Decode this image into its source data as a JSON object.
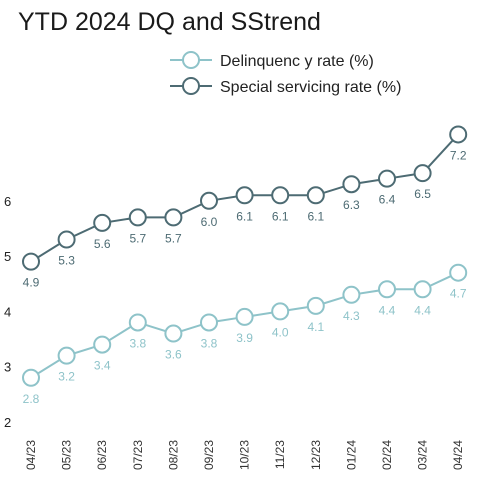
{
  "chart_data": {
    "type": "line",
    "title": "YTD 2024 DQ and SStrend",
    "categories": [
      "04/23",
      "05/23",
      "06/23",
      "07/23",
      "08/23",
      "09/23",
      "10/23",
      "11/23",
      "12/23",
      "01/24",
      "02/24",
      "03/24",
      "04/24"
    ],
    "ylim": [
      2,
      7.4
    ],
    "yticks": [
      "2",
      "3",
      "4",
      "5",
      "6"
    ],
    "ytick_values": [
      2,
      3,
      4,
      5,
      6
    ],
    "legend_position": "top-right",
    "grid": false,
    "series": [
      {
        "name": "Delinquenc y rate (%)",
        "color": "#8ec3c9",
        "values": [
          2.8,
          3.2,
          3.4,
          3.8,
          3.6,
          3.8,
          3.9,
          4.0,
          4.1,
          4.3,
          4.4,
          4.4,
          4.7
        ],
        "labels": [
          "2.8",
          "3.2",
          "3.4",
          "3.8",
          "3.6",
          "3.8",
          "3.9",
          "4.0",
          "4.1",
          "4.3",
          "4.4",
          "4.4",
          "4.7"
        ]
      },
      {
        "name": "Special servicing rate (%)",
        "color": "#4d6b73",
        "values": [
          4.9,
          5.3,
          5.6,
          5.7,
          5.7,
          6.0,
          6.1,
          6.1,
          6.1,
          6.3,
          6.4,
          6.5,
          7.2
        ],
        "labels": [
          "4.9",
          "5.3",
          "5.6",
          "5.7",
          "5.7",
          "6.0",
          "6.1",
          "6.1",
          "6.1",
          "6.3",
          "6.4",
          "6.5",
          "7.2"
        ]
      }
    ]
  }
}
